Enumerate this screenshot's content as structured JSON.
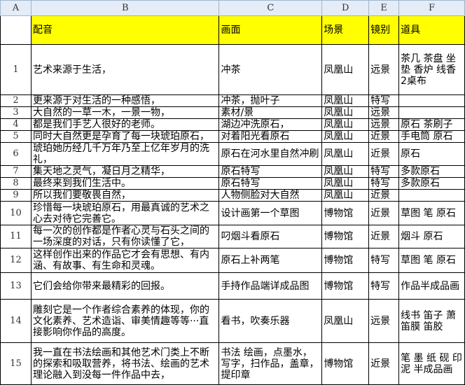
{
  "columns": [
    "A",
    "B",
    "C",
    "D",
    "E",
    "F"
  ],
  "header": {
    "voice": "配音",
    "picture": "画面",
    "scene": "场景",
    "shot": "镜别",
    "props": "道具"
  },
  "rows": [
    {
      "n": "1",
      "voice": "艺术来源于生活，",
      "picture": "冲茶",
      "scene": "凤凰山",
      "shot": "远景",
      "props": "茶几 茶盘 坐垫 香炉 线香 2桌布"
    },
    {
      "n": "2",
      "voice": "更来源于对生活的一种感悟，",
      "picture": "冲茶，抛叶子",
      "scene": "凤凰山",
      "shot": "特写",
      "props": ""
    },
    {
      "n": "3",
      "voice": "大自然的一草一木，一景一物，",
      "picture": "素材/景",
      "scene": "凤凰山",
      "shot": "远景",
      "props": ""
    },
    {
      "n": "4",
      "voice": "都是我们手艺人很好的老师。",
      "picture": "湖边冲洗原石，",
      "scene": "凤凰山",
      "shot": "远景",
      "props": "原石 茶刷子"
    },
    {
      "n": "5",
      "voice": "同时大自然更是孕育了每一块琥珀原石，",
      "picture": "对着阳光看原石",
      "scene": "凤凰山",
      "shot": "近景",
      "props": "手电筒 原石"
    },
    {
      "n": "6",
      "voice": "琥珀她历经几千万年乃至上亿年岁月的洗礼，",
      "picture": "原石在河水里自然冲刷",
      "scene": "凤凰山",
      "shot": "近景",
      "props": "原石"
    },
    {
      "n": "7",
      "voice": "集天地之灵气，凝日月之精华，",
      "picture": "原石特写",
      "scene": "凤凰山",
      "shot": "特写",
      "props": "多款原石"
    },
    {
      "n": "8",
      "voice": "最终来到我们生活中。",
      "picture": "原石特写",
      "scene": "凤凰山",
      "shot": "特写",
      "props": "多款原石"
    },
    {
      "n": "9",
      "voice": "所以我们要敬畏自然，",
      "picture": "人物侧脸对大自然",
      "scene": "凤凰山",
      "shot": "近景",
      "props": ""
    },
    {
      "n": "10",
      "voice": "珍惜每一块琥珀原石，用最真诚的艺术之心去对待它完善它。",
      "picture": "设计画第一个草图",
      "scene": "博物馆",
      "shot": "近景",
      "props": "草图 笔 原石"
    },
    {
      "n": "11",
      "voice": "每一次的创作都是作者心灵与石头之间的一场深度的对话，只有你读懂了它，",
      "picture": "叼烟斗看原石",
      "scene": "博物馆",
      "shot": "近景",
      "props": "烟斗 原石"
    },
    {
      "n": "12",
      "voice": "这样创作出来的作品它才会有思想、有内涵、有故事、有生命和灵魂。",
      "picture": "原石上补两笔",
      "scene": "博物馆",
      "shot": "特写",
      "props": "草图 笔 原石"
    },
    {
      "n": "13",
      "voice": "它们会给你带来最精彩的回报。",
      "picture": "手持作品端详成品图",
      "scene": "博物馆",
      "shot": "特写",
      "props": "作品半成品画"
    },
    {
      "n": "14",
      "voice": "雕刻它是一个作者综合素养的体现，你的文化素养、艺术造诣、审美情趣等等···直接影响你作品的高度。",
      "picture": "看书，吹奏乐器",
      "scene": "凤凰山",
      "shot": "远景",
      "props": "线书 笛子 萧 笛膜 笛胶"
    },
    {
      "n": "15",
      "voice": "我一直在书法绘画和其他艺术门类上不断的探索和吸取营养，将书法、绘画的艺术理论融入到没每一件作品中去，",
      "picture": "书法 绘画，点墨水，写字，扫作品，盖章，提印章",
      "scene": "博物馆",
      "shot": "近景",
      "props": "笔 墨 纸 砚 印泥 半成品画"
    }
  ]
}
